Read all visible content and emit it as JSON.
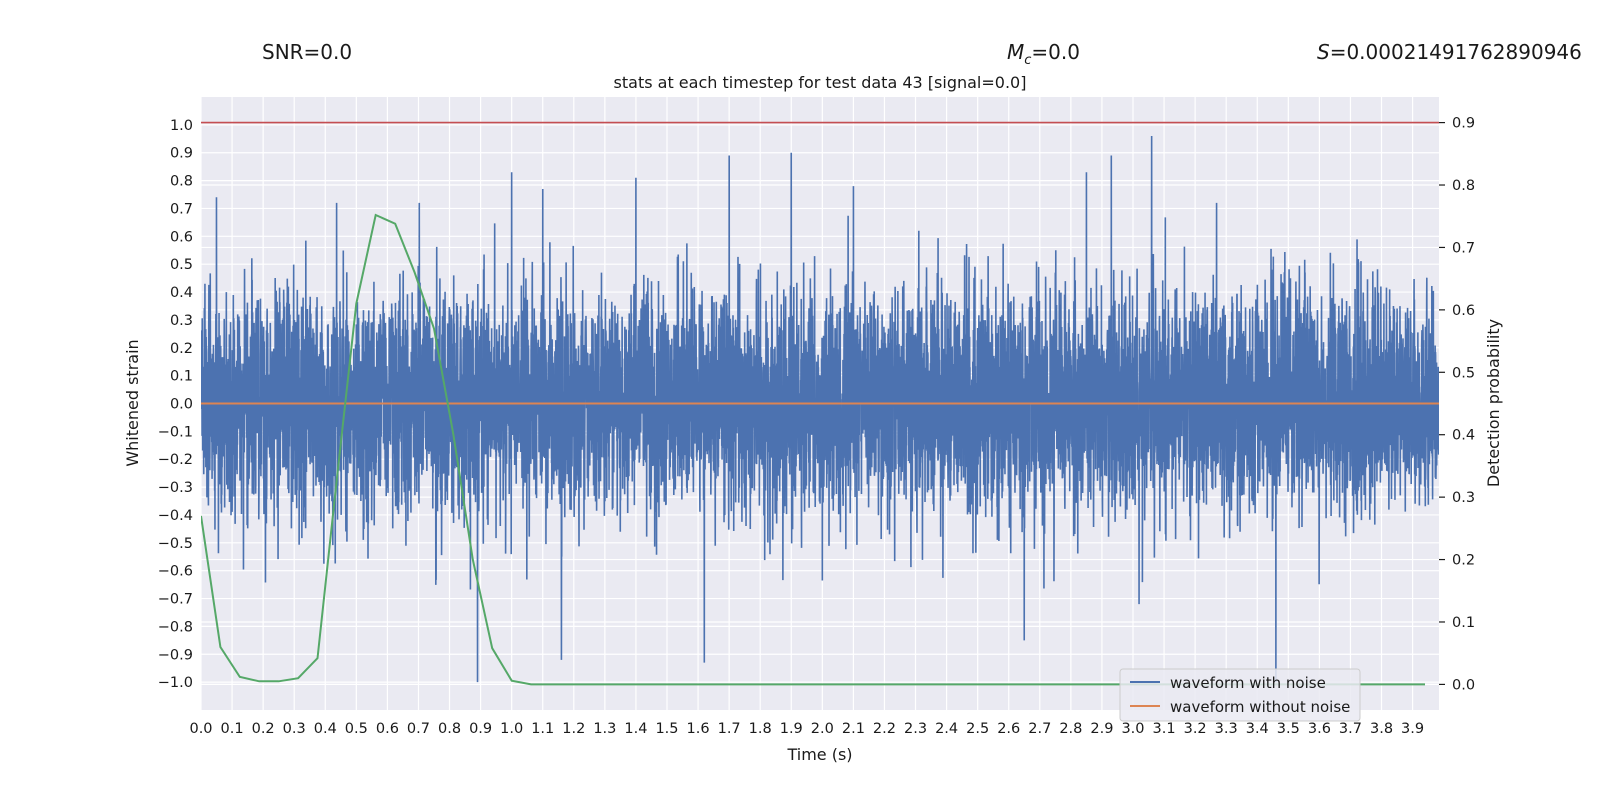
{
  "stats": {
    "snr_label": "SNR=0.0",
    "mc_symbol": "M",
    "mc_sub": "c",
    "mc_value": "=0.0",
    "s_symbol": "S",
    "s_value": "=0.00021491762890946"
  },
  "chart_data": {
    "type": "line",
    "title": "stats at each timestep for test data 43 [signal=0.0]",
    "xlabel": "Time (s)",
    "ylabel": "Whitened strain",
    "y2label": "Detection probability",
    "xlim": [
      0.0,
      3.985
    ],
    "ylim": [
      -1.1,
      1.1
    ],
    "y2lim": [
      -0.041,
      0.941
    ],
    "x_ticks": [
      "0.0",
      "0.1",
      "0.2",
      "0.3",
      "0.4",
      "0.5",
      "0.6",
      "0.7",
      "0.8",
      "0.9",
      "1.0",
      "1.1",
      "1.2",
      "1.3",
      "1.4",
      "1.5",
      "1.6",
      "1.7",
      "1.8",
      "1.9",
      "2.0",
      "2.1",
      "2.2",
      "2.3",
      "2.4",
      "2.5",
      "2.6",
      "2.7",
      "2.8",
      "2.9",
      "3.0",
      "3.1",
      "3.2",
      "3.3",
      "3.4",
      "3.5",
      "3.6",
      "3.7",
      "3.8",
      "3.9"
    ],
    "y_ticks": [
      "1.0",
      "0.9",
      "0.8",
      "0.7",
      "0.6",
      "0.5",
      "0.4",
      "0.3",
      "0.2",
      "0.1",
      "0.0",
      "-0.1",
      "-0.2",
      "-0.3",
      "-0.4",
      "-0.5",
      "-0.6",
      "-0.7",
      "-0.8",
      "-0.9",
      "-1.0"
    ],
    "y2_ticks": [
      "0.9",
      "0.8",
      "0.7",
      "0.6",
      "0.5",
      "0.4",
      "0.3",
      "0.2",
      "0.1",
      "0.0"
    ],
    "grid": true,
    "legend_position": "lower-right",
    "colors": {
      "background": "#eaeaf2",
      "grid": "#ffffff",
      "noisy": "#4c72b0",
      "clean": "#dd8452",
      "probability": "#55a868",
      "threshold": "#c44e52"
    },
    "noisy_series": {
      "name": "waveform with noise",
      "sample_rate_hz": 2048,
      "envelope_range": [
        -1.0,
        1.0
      ],
      "notable_peaks": [
        {
          "x": 0.05,
          "y": 0.74
        },
        {
          "x": 1.0,
          "y": 0.83
        },
        {
          "x": 1.1,
          "y": 0.77
        },
        {
          "x": 1.4,
          "y": 0.81
        },
        {
          "x": 1.7,
          "y": 0.89
        },
        {
          "x": 1.9,
          "y": 0.9
        },
        {
          "x": 2.1,
          "y": 0.78
        },
        {
          "x": 2.85,
          "y": 0.83
        },
        {
          "x": 2.93,
          "y": 0.89
        },
        {
          "x": 3.06,
          "y": 0.96
        },
        {
          "x": 0.89,
          "y": -1.0
        },
        {
          "x": 1.16,
          "y": -0.92
        },
        {
          "x": 1.62,
          "y": -0.93
        },
        {
          "x": 2.65,
          "y": -0.85
        },
        {
          "x": 3.46,
          "y": -1.0
        }
      ]
    },
    "clean_series": {
      "name": "waveform without noise",
      "x": [
        0.0,
        3.985
      ],
      "y": [
        0.0,
        0.0
      ]
    },
    "probability_series": {
      "axis": "right",
      "x": [
        0.0,
        0.0625,
        0.125,
        0.1875,
        0.25,
        0.3125,
        0.375,
        0.4375,
        0.5,
        0.5625,
        0.625,
        0.6875,
        0.75,
        0.8125,
        0.875,
        0.9375,
        1.0,
        1.0625,
        1.125,
        1.5,
        2.0,
        2.5,
        3.0,
        3.5,
        3.94
      ],
      "y": [
        0.27,
        0.06,
        0.012,
        0.005,
        0.005,
        0.01,
        0.042,
        0.33,
        0.61,
        0.752,
        0.738,
        0.66,
        0.57,
        0.4,
        0.2,
        0.058,
        0.006,
        0.0,
        0.0,
        0.0,
        0.0,
        0.0,
        0.0,
        0.0,
        0.0
      ]
    },
    "threshold_line": {
      "axis": "right",
      "y": 0.9
    }
  }
}
